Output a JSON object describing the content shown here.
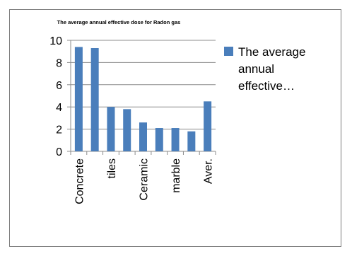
{
  "chart_data": {
    "type": "bar",
    "title": "The average  annual  effective dose  for Radon  gas",
    "xlabel": "",
    "ylabel": "",
    "ylim": [
      0,
      10
    ],
    "yticks": [
      0,
      2,
      4,
      6,
      8,
      10
    ],
    "grid": true,
    "legend_position": "right",
    "categories": [
      "Concrete",
      "",
      "tiles",
      "",
      "Ceramic",
      "",
      "marble",
      "",
      "Aver."
    ],
    "category_labels_shown": [
      "Concrete",
      "tiles",
      "Ceramic",
      "marble",
      "Aver."
    ],
    "series": [
      {
        "name": "The average annual effective…",
        "legend_lines": [
          "The average",
          "annual",
          "effective…"
        ],
        "color": "#4a7ebb",
        "values": [
          9.4,
          9.3,
          4.0,
          3.8,
          2.6,
          2.1,
          2.1,
          1.8,
          4.5
        ]
      }
    ]
  }
}
